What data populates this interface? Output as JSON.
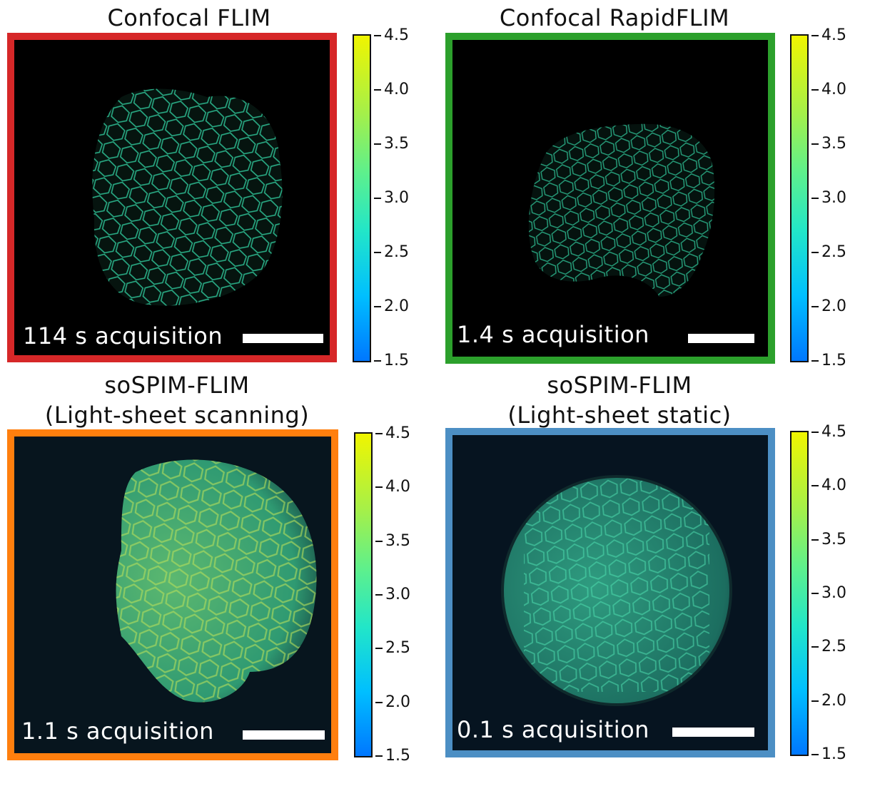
{
  "panels": [
    {
      "title_lines": [
        "Confocal FLIM"
      ],
      "acquisition": "114 s acquisition",
      "border_color": "#d62728",
      "colorbar": {
        "min": 1.5,
        "max": 4.5,
        "ticks": [
          "4.5",
          "4.0",
          "3.5",
          "3.0",
          "2.5",
          "2.0",
          "1.5"
        ]
      }
    },
    {
      "title_lines": [
        "Confocal RapidFLIM"
      ],
      "acquisition": "1.4 s acquisition",
      "border_color": "#2ca02c",
      "colorbar": {
        "min": 1.5,
        "max": 4.5,
        "ticks": [
          "4.5",
          "4.0",
          "3.5",
          "3.0",
          "2.5",
          "2.0",
          "1.5"
        ]
      }
    },
    {
      "title_lines": [
        "soSPIM-FLIM",
        "(Light-sheet scanning)"
      ],
      "acquisition": "1.1 s acquisition",
      "border_color": "#ff7f0e",
      "colorbar": {
        "min": 1.5,
        "max": 4.5,
        "ticks": [
          "4.5",
          "4.0",
          "3.5",
          "3.0",
          "2.5",
          "2.0",
          "1.5"
        ]
      }
    },
    {
      "title_lines": [
        "soSPIM-FLIM",
        "(Light-sheet static)"
      ],
      "acquisition": "0.1 s acquisition",
      "border_color": "#4c8fc4",
      "colorbar": {
        "min": 1.5,
        "max": 4.5,
        "ticks": [
          "4.5",
          "4.0",
          "3.5",
          "3.0",
          "2.5",
          "2.0",
          "1.5"
        ]
      }
    }
  ],
  "colormap": [
    "#0077ff",
    "#00bfff",
    "#22e6c8",
    "#5ef08c",
    "#a4f04a",
    "#f0f500"
  ]
}
